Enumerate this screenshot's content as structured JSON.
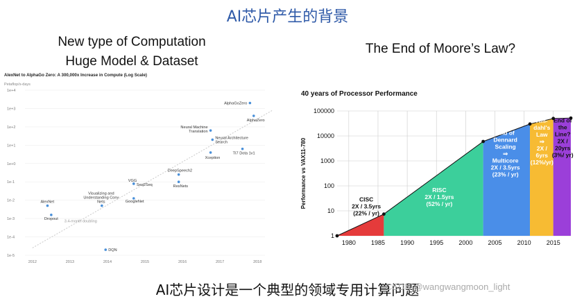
{
  "slide": {
    "title": "AI芯片产生的背景",
    "left_heading_line1": "New type of Computation",
    "left_heading_line2": "Huge Model & Dataset",
    "right_heading": "The End of Moore’s Law?",
    "bottom_caption": "AI芯片设计是一个典型的领域专用计算问题",
    "watermark": "CSDN @wangwangmoon_light"
  },
  "chart_data": [
    {
      "type": "scatter",
      "title": "AlexNet to AlphaGo Zero: A 300,000x Increase in Compute (Log Scale)",
      "ylabel": "Petaflop/s-days",
      "yscale": "log",
      "yticks": [
        "1e+4",
        "1e+3",
        "1e+2",
        "1e+1",
        "1e+0",
        "1e-1",
        "1e-2",
        "1e-3",
        "1e-4",
        "1e-5"
      ],
      "xticks": [
        "2012",
        "2013",
        "2014",
        "2015",
        "2016",
        "2017",
        "2018"
      ],
      "xlim": [
        2011.8,
        2018.2
      ],
      "ylim_exp": [
        -5,
        4
      ],
      "color": "#4a90d9",
      "trend": {
        "label": "3.4-month doubling",
        "x": [
          2012.0,
          2018.4
        ],
        "y_exp": [
          -4.6,
          2.9
        ]
      },
      "points": [
        {
          "label": "AlexNet",
          "x": 2012.4,
          "y_exp": -2.3
        },
        {
          "label": "Dropout",
          "x": 2012.5,
          "y_exp": -2.8
        },
        {
          "label": "Visualizing and Understanding Conv Nets",
          "x": 2013.85,
          "y_exp": -2.3
        },
        {
          "label": "DQN",
          "x": 2013.95,
          "y_exp": -4.7
        },
        {
          "label": "VGG",
          "x": 2014.7,
          "y_exp": -1.1
        },
        {
          "label": "Seq2Seq",
          "x": 2014.7,
          "y_exp": -1.1
        },
        {
          "label": "GoogleNet",
          "x": 2014.7,
          "y_exp": -1.9
        },
        {
          "label": "DeepSpeech2",
          "x": 2015.9,
          "y_exp": -0.6
        },
        {
          "label": "ResNets",
          "x": 2015.9,
          "y_exp": -1.0
        },
        {
          "label": "Neural Machine Translation",
          "x": 2016.75,
          "y_exp": 1.8
        },
        {
          "label": "Neural Architecture Search",
          "x": 2016.8,
          "y_exp": 1.3
        },
        {
          "label": "Xception",
          "x": 2016.75,
          "y_exp": 0.6
        },
        {
          "label": "TI7 Dota 1v1",
          "x": 2017.6,
          "y_exp": 0.8
        },
        {
          "label": "AlphaGoZero",
          "x": 2017.8,
          "y_exp": 3.3
        },
        {
          "label": "AlphaZero",
          "x": 2017.9,
          "y_exp": 2.6
        }
      ]
    },
    {
      "type": "area",
      "title": "40 years of Processor Performance",
      "ylabel": "Performance vs VAX11-780",
      "yscale": "log",
      "ylim": [
        1,
        100000
      ],
      "yticks": [
        "1",
        "10",
        "100",
        "1000",
        "10000",
        "100000"
      ],
      "xticks": [
        "1980",
        "1985",
        "1990",
        "1995",
        "2000",
        "2005",
        "2010",
        "2015"
      ],
      "xlim": [
        1978,
        2018
      ],
      "series": [
        {
          "x": 1978,
          "y": 1
        },
        {
          "x": 1986,
          "y": 7.4
        },
        {
          "x": 2003,
          "y": 6000
        },
        {
          "x": 2011,
          "y": 30000
        },
        {
          "x": 2015,
          "y": 50000
        },
        {
          "x": 2018,
          "y": 52000
        }
      ],
      "regions": [
        {
          "lines": [
            "CISC",
            "2X / 3.5yrs",
            "(22% / yr)"
          ],
          "x0": 1978,
          "x1": 1986,
          "color": "#e53b3b"
        },
        {
          "lines": [
            "RISC",
            "2X / 1.5yrs",
            "(52% / yr)"
          ],
          "x0": 1986,
          "x1": 2003,
          "color": "#3ccf9b"
        },
        {
          "lines": [
            "End of",
            "Dennard",
            "Scaling",
            "⇒",
            "Multicore",
            "2X / 3.5yrs",
            "(23% / yr)"
          ],
          "x0": 2003,
          "x1": 2011,
          "color": "#4a8ee8"
        },
        {
          "lines": [
            "Am-",
            "dahl's",
            "Law",
            "⇒",
            "2X /",
            "6yrs",
            "(12%/yr)"
          ],
          "x0": 2011,
          "x1": 2015,
          "color": "#f7bb33"
        },
        {
          "lines": [
            "End of",
            "the",
            "Line?",
            "2X /",
            "20yrs",
            "(3%/ yr)"
          ],
          "x0": 2015,
          "x1": 2018,
          "color": "#9b3fd9"
        }
      ]
    }
  ]
}
